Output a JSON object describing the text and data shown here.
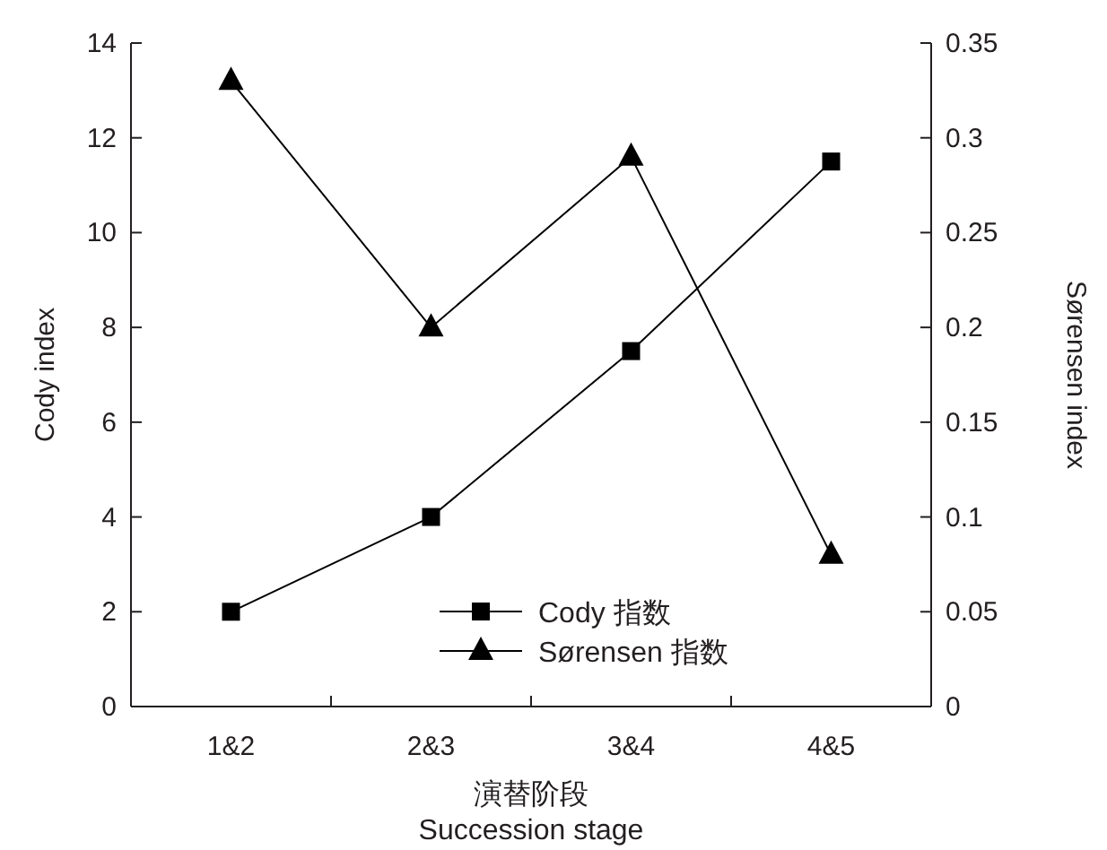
{
  "chart_data": {
    "type": "line",
    "xlabel": "演替阶段\nSuccession stage",
    "ylabel": "Cody index",
    "y2label": "Sørensen index",
    "categories": [
      "1&2",
      "2&3",
      "3&4",
      "4&5"
    ],
    "series": [
      {
        "name": "Cody 指数",
        "color": "#000000",
        "marker": "square",
        "values": [
          2,
          4,
          7.5,
          11.5
        ]
      },
      {
        "name": "Sørensen 指数",
        "color": "#000000",
        "marker": "triangle",
        "axis": "y2",
        "values": [
          0.33,
          0.2,
          0.29,
          0.08
        ]
      }
    ],
    "ylim": [
      0,
      14
    ],
    "yticks": [
      0,
      2,
      4,
      6,
      8,
      10,
      12,
      14
    ],
    "y2lim": [
      0,
      0.35
    ],
    "y2ticks": [
      0,
      0.05,
      0.1,
      0.15,
      0.2,
      0.25,
      0.3,
      0.35
    ],
    "legend": "bottom",
    "grid": false,
    "line_style": "solid"
  }
}
